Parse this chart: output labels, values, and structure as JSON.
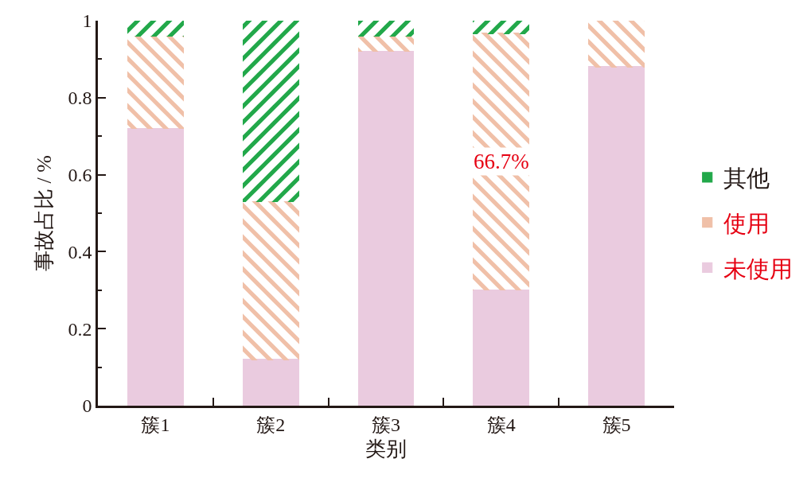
{
  "chart_data": {
    "type": "bar",
    "xlabel": "类别",
    "ylabel": "事故占比 / %",
    "categories": [
      "簇1",
      "簇2",
      "簇3",
      "簇4",
      "簇5"
    ],
    "stacked": true,
    "series": [
      {
        "name": "未使用",
        "color": "#eacbdf",
        "values": [
          0.72,
          0.12,
          0.92,
          0.3,
          0.88
        ]
      },
      {
        "name": "使用",
        "color": "#f0c0a8",
        "values": [
          0.24,
          0.41,
          0.04,
          0.667,
          0.12
        ]
      },
      {
        "name": "其他",
        "color": "#22a84a",
        "values": [
          0.04,
          0.47,
          0.04,
          0.033,
          null
        ]
      }
    ],
    "ylim": [
      0,
      1
    ],
    "yticks": [
      0,
      {
        "value": 0.1,
        "label": null
      },
      0.2,
      {
        "value": 0.3,
        "label": null
      },
      0.4,
      {
        "value": 0.5,
        "label": null
      },
      0.6,
      {
        "value": 0.7,
        "label": null
      },
      0.8,
      {
        "value": 0.9,
        "label": null
      },
      1
    ],
    "grid": false,
    "legend": "right",
    "annotations": [
      "66.7%"
    ]
  }
}
